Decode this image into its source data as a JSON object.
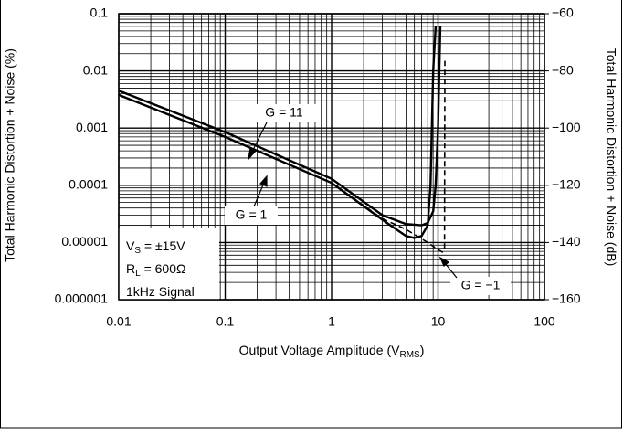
{
  "chart_data": {
    "type": "line",
    "xlabel": [
      "Output Voltage Amplitude (V",
      "RMS",
      ")"
    ],
    "ylabel": "Total Harmonic Distortion + Noise (%)",
    "y2label": "Total Harmonic Distortion + Noise (dB)",
    "xscale": "log",
    "yscale": "log",
    "grid": true,
    "xlim": [
      0.01,
      100
    ],
    "xticks": [
      0.01,
      0.1,
      1,
      10,
      100
    ],
    "ylim": [
      1e-06,
      0.1
    ],
    "yticks": [
      0.1,
      0.01,
      0.001,
      0.0001,
      1e-05,
      1e-06
    ],
    "y2lim": [
      -160,
      -60
    ],
    "y2ticks": [
      {
        "value": -60,
        "label": "−60"
      },
      {
        "value": -80,
        "label": "−80"
      },
      {
        "value": -100,
        "label": "−100"
      },
      {
        "value": -120,
        "label": "−120"
      },
      {
        "value": -140,
        "label": "−140"
      },
      {
        "value": -160,
        "label": "−160"
      }
    ],
    "series": [
      {
        "name": "G = 11",
        "color": "#000000",
        "dashed": false,
        "x": [
          0.01,
          0.1,
          1,
          3,
          5,
          7,
          8,
          9,
          9.5,
          10,
          10.5
        ],
        "values": [
          0.0045,
          0.00085,
          0.00013,
          3e-05,
          2.1e-05,
          2e-05,
          2.2e-05,
          3.5e-05,
          0.0001,
          0.001,
          0.06
        ]
      },
      {
        "name": "G = 1",
        "color": "#000000",
        "dashed": false,
        "x": [
          0.01,
          0.1,
          1,
          3,
          5,
          6,
          7,
          8,
          8.5,
          9,
          9.5
        ],
        "values": [
          0.0038,
          0.0007,
          0.00011,
          2.5e-05,
          1.3e-05,
          1.2e-05,
          1.3e-05,
          2e-05,
          0.0001,
          0.01,
          0.06
        ]
      },
      {
        "name": "G = −1",
        "color": "#000000",
        "dashed": true,
        "x": [
          0.01,
          0.1,
          1,
          3,
          5,
          8,
          10,
          11,
          11.5,
          11.6
        ],
        "values": [
          0.0038,
          0.0007,
          0.00011,
          2.6e-05,
          1.7e-05,
          1e-05,
          7.5e-06,
          6.8e-06,
          7.5e-06,
          0.015
        ]
      }
    ],
    "annotations": [
      {
        "text": "V",
        "sub": "S",
        "tail": " = ±15V"
      },
      {
        "text": "R",
        "sub": "L",
        "tail": " = 600Ω"
      },
      {
        "text": "1kHz Signal"
      }
    ]
  }
}
